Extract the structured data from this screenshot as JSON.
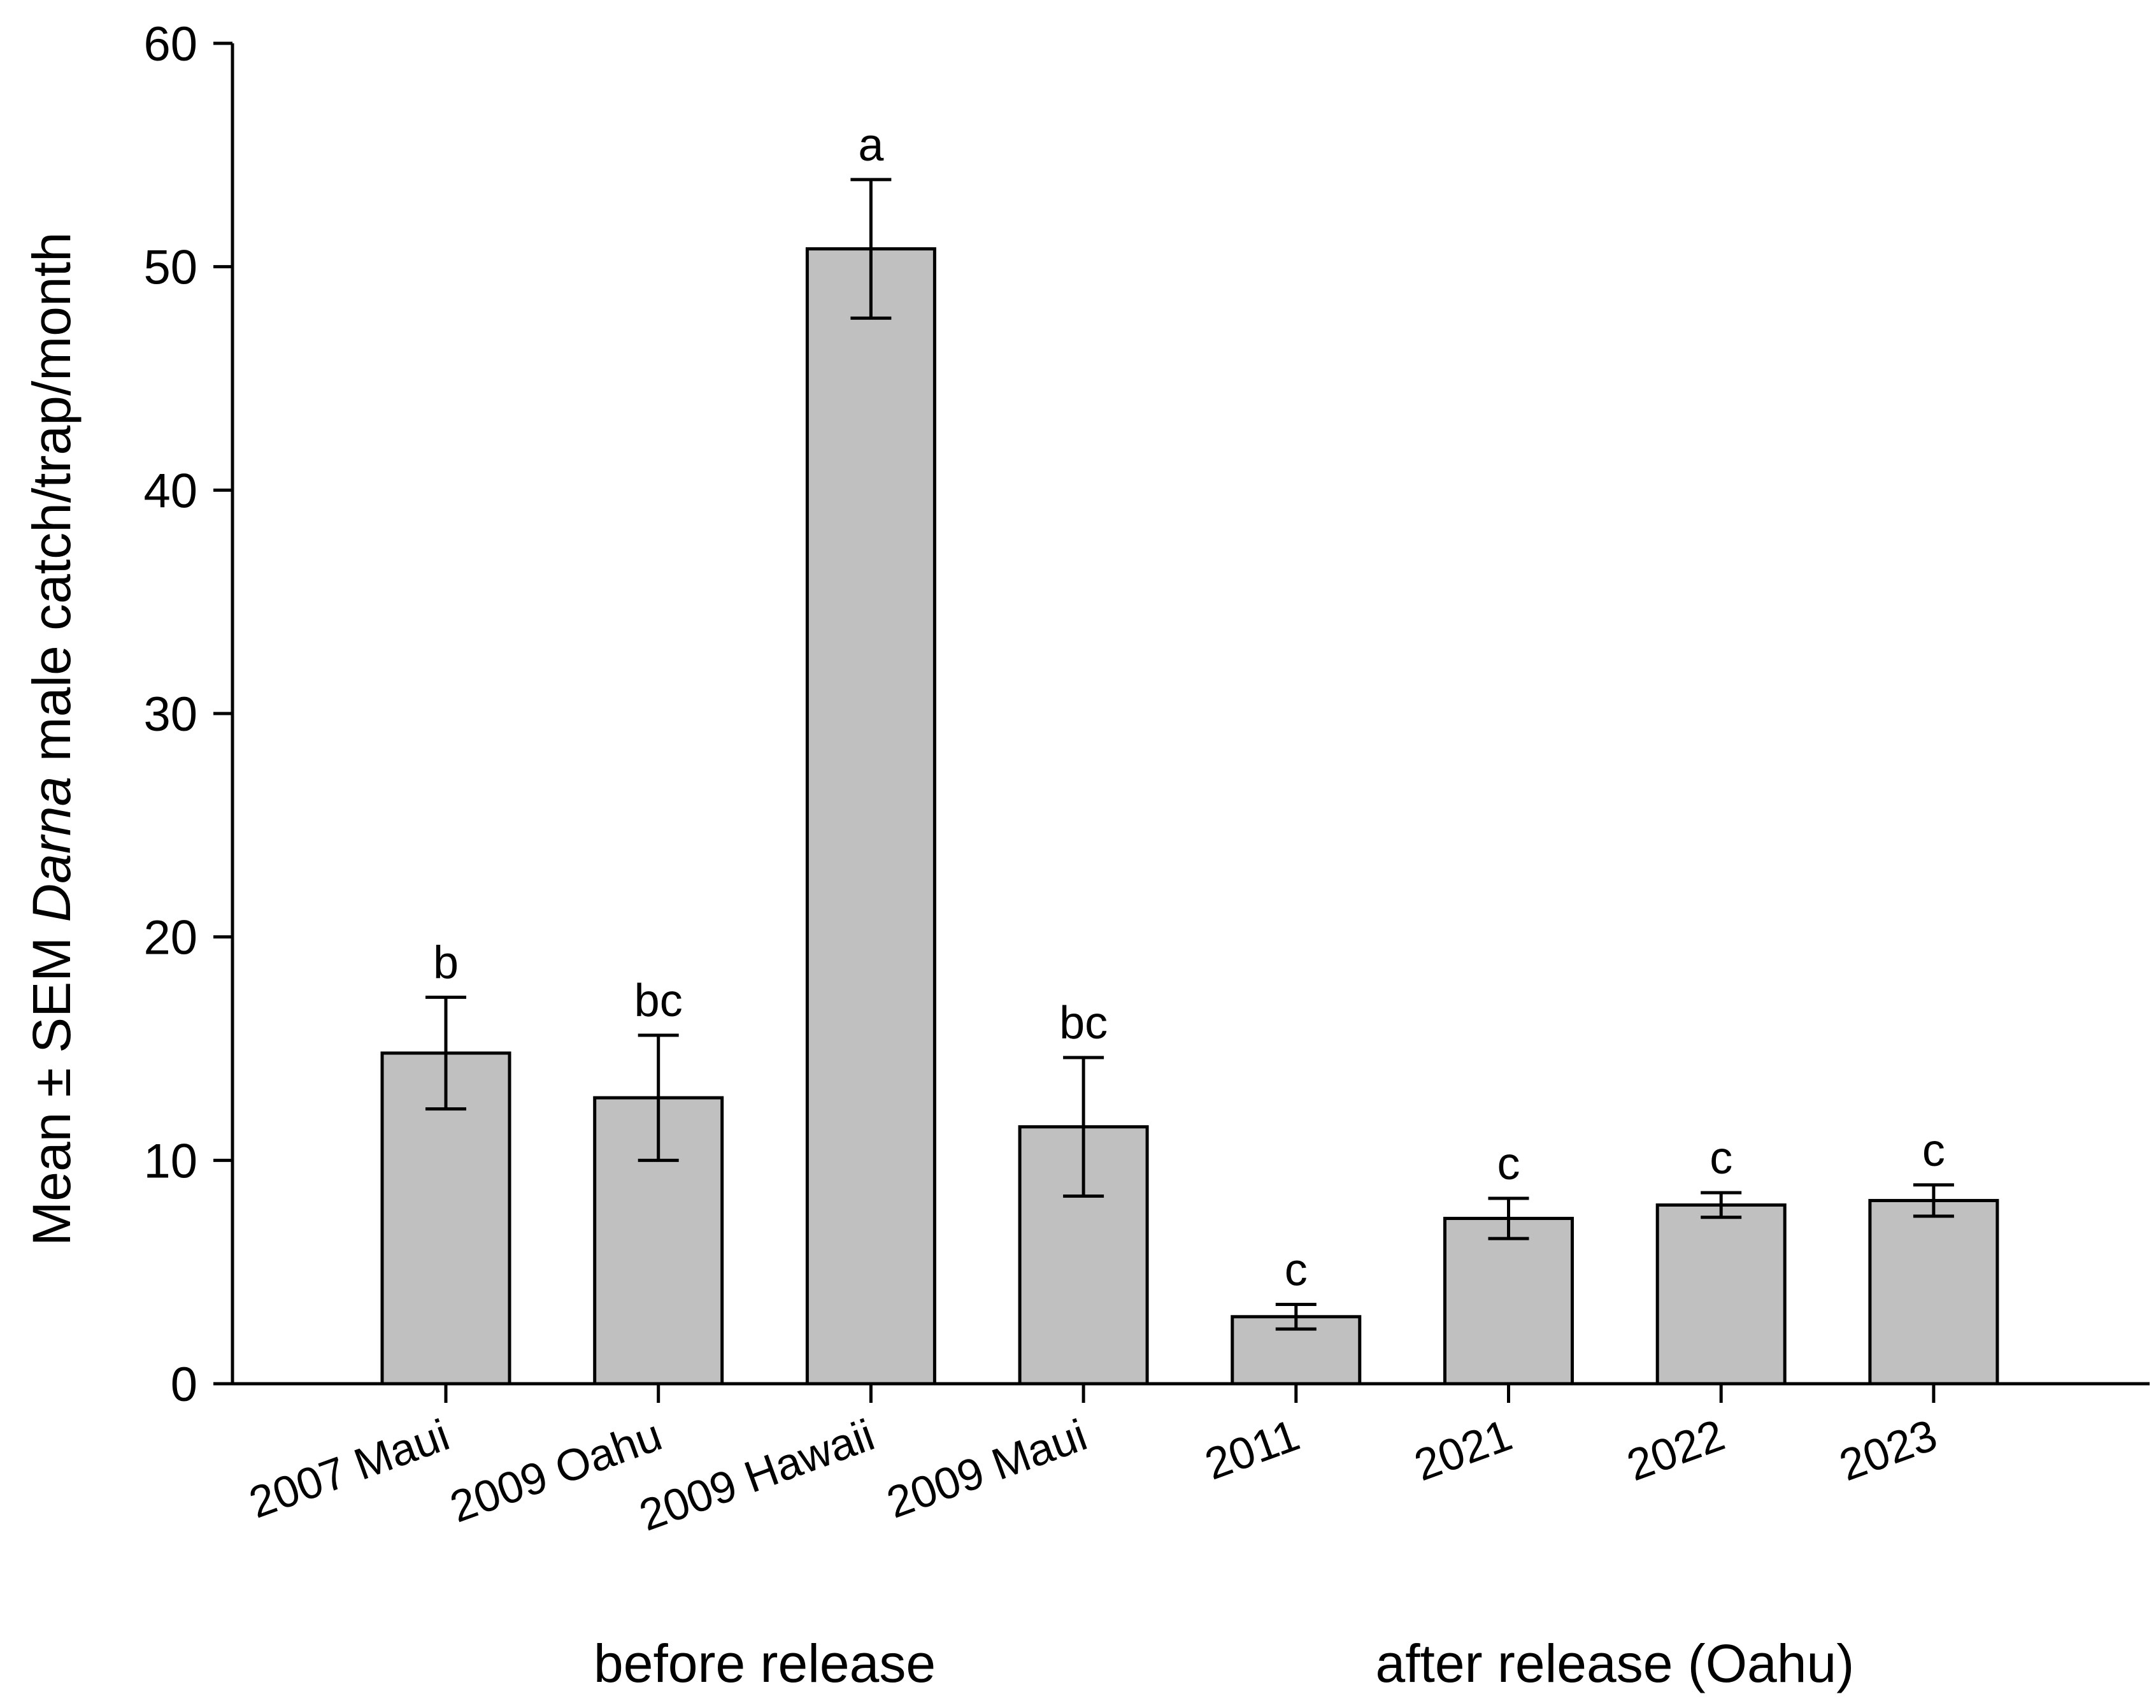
{
  "chart_data": {
    "type": "bar",
    "categories": [
      "2007 Maui",
      "2009 Oahu",
      "2009 Hawaii",
      "2009 Maui",
      "2011",
      "2021",
      "2022",
      "2023"
    ],
    "values": [
      14.8,
      12.8,
      50.8,
      11.5,
      3.0,
      7.4,
      8.0,
      8.2
    ],
    "error": [
      2.5,
      2.8,
      3.1,
      3.1,
      0.55,
      0.9,
      0.55,
      0.7
    ],
    "significance_letters": [
      "b",
      "bc",
      "a",
      "bc",
      "c",
      "c",
      "c",
      "c"
    ],
    "ylabel": {
      "prefix": "Mean ± SEM ",
      "italic": "Darna",
      "suffix": " male catch/trap/month"
    },
    "ylim": [
      0,
      60
    ],
    "yticks": [
      "0",
      "10",
      "20",
      "30",
      "40",
      "50",
      "60"
    ],
    "groups": [
      {
        "label": "before release",
        "categories": [
          0,
          1,
          2,
          3
        ]
      },
      {
        "label": "after release (Oahu)",
        "categories": [
          4,
          5,
          6,
          7
        ]
      }
    ],
    "bar_color": "#c0c0c0",
    "grid": false,
    "legend": "none"
  }
}
